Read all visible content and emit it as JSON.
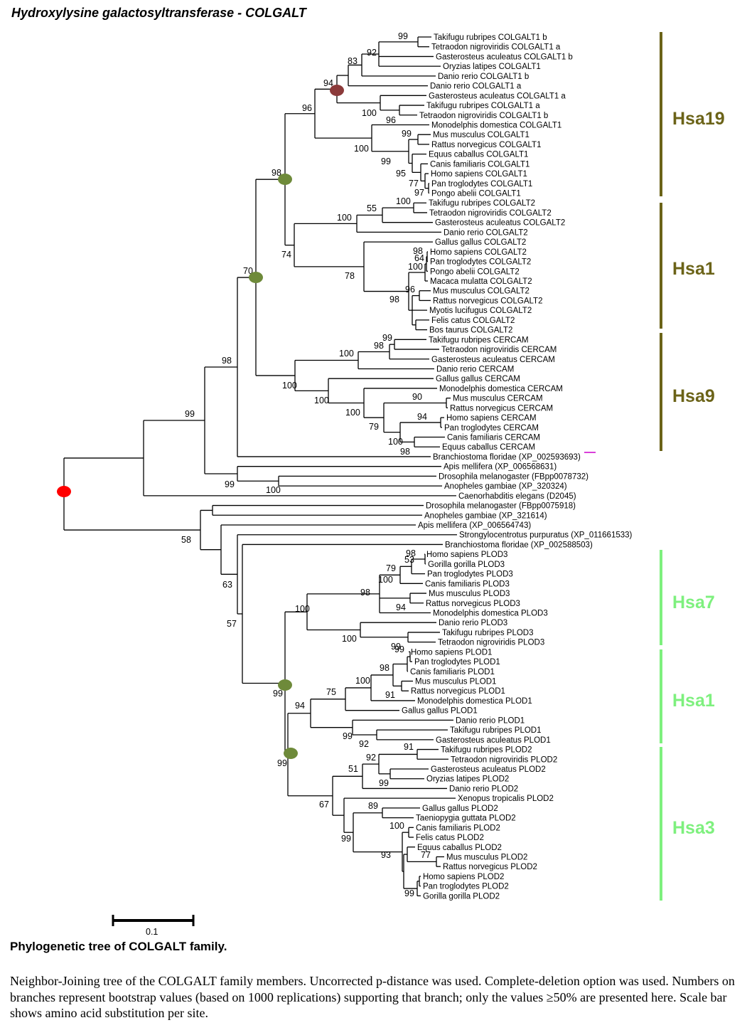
{
  "title": "Hydroxylysine galactosyltransferase -  COLGALT",
  "scale_bar": {
    "label": "0.1"
  },
  "caption": {
    "title": "Phylogenetic tree of COLGALT family.",
    "text": "Neighbor-Joining tree of the COLGALT family members. Uncorrected p-distance was used. Complete-deletion option was used. Numbers on branches represent bootstrap values (based on 1000 replications) supporting that branch; only the values ≥50% are presented here. Scale bar shows amino acid substitution per site."
  },
  "colors": {
    "olive": "#6b6318",
    "green": "#7ef07e",
    "node_olive": "#6e8a3a",
    "node_brown": "#8b3a3a",
    "node_red": "#ff0000",
    "magenta": "#cc00cc"
  },
  "clades": [
    {
      "label": "Hsa19",
      "color": "#6b6318"
    },
    {
      "label": "Hsa1",
      "color": "#6b6318"
    },
    {
      "label": "Hsa9",
      "color": "#6b6318"
    },
    {
      "label": "Hsa7",
      "color": "#7ef07e"
    },
    {
      "label": "Hsa1",
      "color": "#7ef07e"
    },
    {
      "label": "Hsa3",
      "color": "#7ef07e"
    }
  ],
  "leaves": [
    "Takifugu rubripes COLGALT1 b",
    "Tetraodon nigroviridis COLGALT1 a",
    "Gasterosteus aculeatus COLGALT1 b",
    "Oryzias latipes COLGALT1",
    "Danio rerio COLGALT1 b",
    "Danio rerio COLGALT1 a",
    "Gasterosteus aculeatus COLGALT1 a",
    "Takifugu rubripes COLGALT1 a",
    "Tetraodon nigroviridis COLGALT1 b",
    "Monodelphis domestica COLGALT1",
    "Mus musculus COLGALT1",
    "Rattus norvegicus COLGALT1",
    "Equus caballus COLGALT1",
    "Canis familiaris COLGALT1",
    "Homo sapiens COLGALT1",
    "Pan troglodytes COLGALT1",
    "Pongo abelii COLGALT1",
    "Takifugu rubripes COLGALT2",
    "Tetraodon nigroviridis COLGALT2",
    "Gasterosteus aculeatus COLGALT2",
    "Danio rerio COLGALT2",
    "Gallus gallus COLGALT2",
    "Homo sapiens COLGALT2",
    "Pan troglodytes COLGALT2",
    "Pongo abelii COLGALT2",
    "Macaca mulatta COLGALT2",
    "Mus musculus COLGALT2",
    "Rattus norvegicus COLGALT2",
    "Myotis lucifugus COLGALT2",
    "Felis catus COLGALT2",
    "Bos taurus COLGALT2",
    "Takifugu rubripes CERCAM",
    "Tetraodon nigroviridis CERCAM",
    "Gasterosteus aculeatus CERCAM",
    "Danio rerio CERCAM",
    "Gallus gallus CERCAM",
    "Monodelphis domestica CERCAM",
    "Mus musculus CERCAM",
    "Rattus norvegicus CERCAM",
    "Homo sapiens CERCAM",
    "Pan troglodytes CERCAM",
    "Canis familiaris CERCAM",
    "Equus caballus CERCAM",
    "Branchiostoma floridae (XP_002593693)",
    "Apis mellifera (XP_006568631)",
    "Drosophila melanogaster (FBpp0078732)",
    "Anopheles gambiae (XP_320324)",
    "Caenorhabditis elegans (D2045)",
    "Drosophila melanogaster (FBpp0075918)",
    "Anopheles gambiae (XP_321614)",
    "Apis mellifera (XP_006564743)",
    "Strongylocentrotus purpuratus (XP_011661533)",
    "Branchiostoma floridae (XP_002588503)",
    "Homo sapiens PLOD3",
    "Gorilla gorilla PLOD3",
    "Pan troglodytes PLOD3",
    "Canis familiaris PLOD3",
    "Mus musculus PLOD3",
    "Rattus norvegicus PLOD3",
    "Monodelphis domestica PLOD3",
    "Danio rerio PLOD3",
    "Takifugu rubripes PLOD3",
    "Tetraodon nigroviridis PLOD3",
    "Homo sapiens PLOD1",
    "Pan troglodytes PLOD1",
    "Canis familiaris PLOD1",
    "Mus musculus PLOD1",
    "Rattus norvegicus PLOD1",
    "Monodelphis domestica PLOD1",
    "Gallus gallus PLOD1",
    "Danio rerio PLOD1",
    "Takifugu rubripes PLOD1",
    "Gasterosteus aculeatus PLOD1",
    "Takifugu rubripes PLOD2",
    "Tetraodon nigroviridis PLOD2",
    "Gasterosteus aculeatus PLOD2",
    "Oryzias latipes PLOD2",
    "Danio rerio PLOD2",
    "Xenopus tropicalis PLOD2",
    "Gallus gallus PLOD2",
    "Taeniopygia guttata PLOD2",
    "Canis familiaris PLOD2",
    "Felis catus PLOD2",
    "Equus caballus PLOD2",
    "Mus musculus PLOD2",
    "Rattus norvegicus PLOD2",
    "Homo sapiens PLOD2",
    "Pan troglodytes PLOD2",
    "Gorilla gorilla PLOD2"
  ],
  "bootstrap": [
    "99",
    "92",
    "83",
    "94",
    "96",
    "100",
    "96",
    "99",
    "100",
    "99",
    "95",
    "77",
    "97",
    "98",
    "100",
    "55",
    "100",
    "74",
    "78",
    "98",
    "64",
    "100",
    "96",
    "98",
    "70",
    "98",
    "100",
    "99",
    "98",
    "100",
    "100",
    "90",
    "100",
    "94",
    "79",
    "100",
    "98",
    "99",
    "99",
    "100",
    "58",
    "63",
    "57",
    "98",
    "53",
    "79",
    "100",
    "98",
    "94",
    "100",
    "100",
    "99",
    "99",
    "98",
    "100",
    "75",
    "91",
    "99",
    "94",
    "99",
    "92",
    "91",
    "92",
    "51",
    "99",
    "99",
    "67",
    "89",
    "100",
    "99",
    "93",
    "77",
    "99"
  ]
}
